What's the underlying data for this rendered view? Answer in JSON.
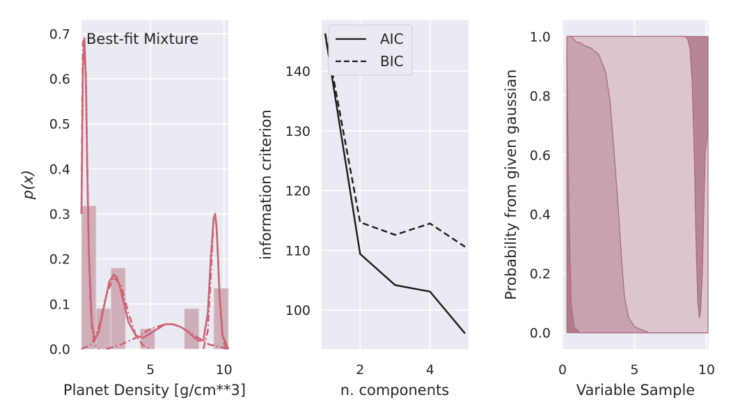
{
  "chart_data": [
    {
      "type": "bar",
      "xlabel": "Planet Density [g/cm**3]",
      "ylabel": "p(x)",
      "xlim": [
        0.3,
        10.3
      ],
      "ylim": [
        0,
        0.73
      ],
      "xticks": [
        5,
        10
      ],
      "yticks": [
        0.0,
        0.1,
        0.2,
        0.3,
        0.4,
        0.5,
        0.6,
        0.7
      ],
      "grid": true,
      "annotation": "Best-fit Mixture",
      "histogram": {
        "bins": [
          {
            "x0": 0.3,
            "x1": 1.3,
            "value": 0.318
          },
          {
            "x0": 1.3,
            "x1": 2.3,
            "value": 0.09
          },
          {
            "x0": 2.3,
            "x1": 3.3,
            "value": 0.18
          },
          {
            "x0": 3.3,
            "x1": 4.3,
            "value": 0.0
          },
          {
            "x0": 4.3,
            "x1": 5.3,
            "value": 0.045
          },
          {
            "x0": 5.3,
            "x1": 6.3,
            "value": 0.0
          },
          {
            "x0": 6.3,
            "x1": 7.3,
            "value": 0.0
          },
          {
            "x0": 7.3,
            "x1": 8.3,
            "value": 0.09
          },
          {
            "x0": 8.3,
            "x1": 9.3,
            "value": 0.0
          },
          {
            "x0": 9.3,
            "x1": 10.3,
            "value": 0.135
          }
        ]
      },
      "mixture_total_curve": {
        "x": [
          0.3,
          0.4,
          0.5,
          0.6,
          0.7,
          0.8,
          1.0,
          1.2,
          1.5,
          1.8,
          2.0,
          2.2,
          2.5,
          2.7,
          2.9,
          3.2,
          3.5,
          4.0,
          4.5,
          5.0,
          5.5,
          6.0,
          6.5,
          7.0,
          7.5,
          8.0,
          8.3,
          8.6,
          8.9,
          9.1,
          9.3,
          9.4,
          9.5,
          9.6,
          9.7,
          9.9,
          10.3
        ],
        "y": [
          0.3,
          0.62,
          0.69,
          0.6,
          0.4,
          0.22,
          0.06,
          0.02,
          0.04,
          0.09,
          0.12,
          0.15,
          0.165,
          0.16,
          0.14,
          0.1,
          0.06,
          0.03,
          0.025,
          0.035,
          0.045,
          0.055,
          0.055,
          0.05,
          0.04,
          0.025,
          0.018,
          0.02,
          0.08,
          0.2,
          0.29,
          0.3,
          0.27,
          0.2,
          0.12,
          0.03,
          0.0
        ]
      },
      "mixture_components": [
        {
          "x": [
            0.3,
            0.35,
            0.4,
            0.5,
            0.6,
            0.7,
            0.8,
            0.9,
            1.0,
            1.2,
            1.5
          ],
          "y": [
            0.3,
            0.55,
            0.68,
            0.69,
            0.6,
            0.4,
            0.22,
            0.11,
            0.05,
            0.01,
            0.0
          ]
        },
        {
          "x": [
            0.3,
            1.0,
            1.5,
            2.0,
            2.5,
            3.0,
            3.5,
            4.0,
            4.5,
            5.0
          ],
          "y": [
            0.0,
            0.01,
            0.05,
            0.12,
            0.16,
            0.14,
            0.08,
            0.03,
            0.008,
            0.0
          ]
        },
        {
          "x": [
            2.0,
            3.0,
            4.0,
            5.0,
            6.0,
            6.5,
            7.0,
            8.0,
            9.0,
            10.3
          ],
          "y": [
            0.0,
            0.01,
            0.025,
            0.045,
            0.055,
            0.055,
            0.05,
            0.03,
            0.01,
            0.0
          ]
        },
        {
          "x": [
            8.6,
            8.9,
            9.1,
            9.3,
            9.4,
            9.5,
            9.6,
            9.7,
            9.9,
            10.1,
            10.3
          ],
          "y": [
            0.0,
            0.04,
            0.16,
            0.29,
            0.3,
            0.27,
            0.2,
            0.12,
            0.03,
            0.0,
            0.0
          ]
        }
      ]
    },
    {
      "type": "line",
      "xlabel": "n. components",
      "ylabel": "information criterion",
      "xlim": [
        0.9,
        5.1
      ],
      "ylim": [
        93.5,
        148.5
      ],
      "xticks": [
        2,
        4
      ],
      "yticks": [
        100,
        110,
        120,
        130,
        140
      ],
      "grid": true,
      "legend_position": "upper-left",
      "x": [
        1,
        2,
        3,
        4,
        5
      ],
      "series": [
        {
          "name": "AIC",
          "style": "solid",
          "values": [
            146.3,
            109.4,
            104.2,
            103.1,
            96.1
          ]
        },
        {
          "name": "BIC",
          "style": "dashed",
          "values": [
            146.3,
            114.7,
            112.6,
            114.5,
            110.6
          ]
        }
      ]
    },
    {
      "type": "area",
      "xlabel": "Variable Sample",
      "ylabel": "Probability from given gaussian",
      "xlim": [
        -0.05,
        10.15
      ],
      "ylim": [
        -0.055,
        1.055
      ],
      "xticks": [
        0,
        5,
        10
      ],
      "yticks": [
        0.0,
        0.2,
        0.4,
        0.6,
        0.8,
        1.0
      ],
      "grid": true,
      "x": [
        0.3,
        0.45,
        0.6,
        0.8,
        1.0,
        1.2,
        1.5,
        2.0,
        2.5,
        3.0,
        3.3,
        3.6,
        3.9,
        4.1,
        4.3,
        4.6,
        5.0,
        5.5,
        6.0,
        7.0,
        8.0,
        8.5,
        8.7,
        8.85,
        9.0,
        9.15,
        9.3,
        9.4,
        9.5,
        9.6,
        9.7,
        9.8,
        9.9,
        10.1
      ],
      "stacked_series": [
        {
          "name": "",
          "values": [
            0.95,
            0.4,
            0.1,
            0.02,
            0.01,
            0.0,
            0.0,
            0.0,
            0.0,
            0.0,
            0.0,
            0.0,
            0.0,
            0.0,
            0.0,
            0.0,
            0.0,
            0.0,
            0.0,
            0.0,
            0.0,
            0.0,
            0.0,
            0.0,
            0.0,
            0.0,
            0.0,
            0.0,
            0.0,
            0.0,
            0.0,
            0.0,
            0.0,
            0.0
          ]
        },
        {
          "name": "",
          "values": [
            0.05,
            0.6,
            0.9,
            0.97,
            0.97,
            0.98,
            0.97,
            0.96,
            0.94,
            0.88,
            0.78,
            0.6,
            0.4,
            0.25,
            0.12,
            0.05,
            0.02,
            0.01,
            0.0,
            0.0,
            0.0,
            0.0,
            0.0,
            0.0,
            0.0,
            0.0,
            0.0,
            0.0,
            0.0,
            0.0,
            0.0,
            0.0,
            0.0,
            0.0
          ]
        },
        {
          "name": "",
          "values": [
            0.0,
            0.0,
            0.0,
            0.01,
            0.02,
            0.02,
            0.03,
            0.04,
            0.06,
            0.12,
            0.22,
            0.4,
            0.6,
            0.75,
            0.88,
            0.95,
            0.98,
            0.99,
            1.0,
            1.0,
            1.0,
            1.0,
            0.99,
            0.96,
            0.85,
            0.6,
            0.25,
            0.1,
            0.05,
            0.08,
            0.2,
            0.4,
            0.6,
            0.7
          ]
        },
        {
          "name": "",
          "values": [
            0.0,
            0.0,
            0.0,
            0.0,
            0.0,
            0.0,
            0.0,
            0.0,
            0.0,
            0.0,
            0.0,
            0.0,
            0.0,
            0.0,
            0.0,
            0.0,
            0.0,
            0.0,
            0.0,
            0.0,
            0.0,
            0.0,
            0.01,
            0.04,
            0.15,
            0.4,
            0.75,
            0.9,
            0.95,
            0.92,
            0.8,
            0.6,
            0.4,
            0.3
          ]
        }
      ]
    }
  ],
  "colors": {
    "background": "#eaeaf2",
    "grid": "#ffffff",
    "hist_fill": "#c9a3b0",
    "curve": "#cf6272",
    "aic_bic": "#1a1a1a",
    "area_layers": [
      "#b07585",
      "#c59eac",
      "#dcc3cd",
      "#b38190"
    ]
  }
}
